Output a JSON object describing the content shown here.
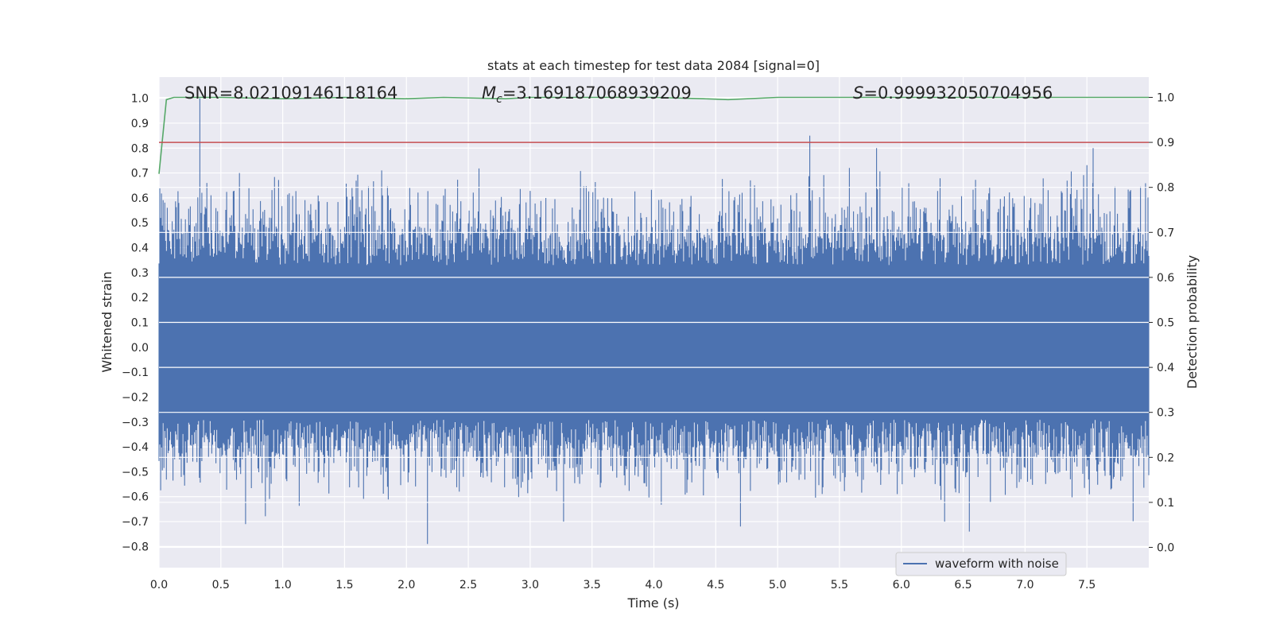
{
  "chart_data": {
    "type": "line",
    "title": "stats at each timestep for test data 2084 [signal=0]",
    "xlabel": "Time (s)",
    "ylabel": "Whitened strain",
    "y2label": "Detection probability",
    "xlim": [
      0.0,
      8.0
    ],
    "ylim": [
      -0.885,
      1.085
    ],
    "y2lim": [
      -0.045,
      1.045
    ],
    "x_ticks": [
      "0.0",
      "0.5",
      "1.0",
      "1.5",
      "2.0",
      "2.5",
      "3.0",
      "3.5",
      "4.0",
      "4.5",
      "5.0",
      "5.5",
      "6.0",
      "6.5",
      "7.0",
      "7.5"
    ],
    "y_ticks": [
      "1.0",
      "0.9",
      "0.8",
      "0.7",
      "0.6",
      "0.5",
      "0.4",
      "0.3",
      "0.2",
      "0.1",
      "0.0",
      "−0.1",
      "−0.2",
      "−0.3",
      "−0.4",
      "−0.5",
      "−0.6",
      "−0.7",
      "−0.8"
    ],
    "y2_ticks": [
      "1.0",
      "0.9",
      "0.8",
      "0.7",
      "0.6",
      "0.5",
      "0.4",
      "0.3",
      "0.2",
      "0.1",
      "0.0"
    ],
    "grid": true,
    "legend_position": "lower-right",
    "annotations": {
      "snr": "SNR=8.02109146118164",
      "mc_symbol": "M",
      "mc_subscript": "c",
      "mc_value": "=3.169187068939209",
      "s_symbol": "S",
      "s_value": "=0.999932050704956"
    },
    "series": [
      {
        "name": "waveform with noise",
        "axis": "left",
        "color": "#4c72b0",
        "envelope_description": "dense noisy strain, typical band ±0.45, spikes to 1.0 and -0.79",
        "peaks": [
          {
            "x": 0.33,
            "y": 1.0
          },
          {
            "x": 5.26,
            "y": 0.85
          },
          {
            "x": 5.8,
            "y": 0.8
          },
          {
            "x": 7.55,
            "y": 0.8
          },
          {
            "x": 1.8,
            "y": 0.71
          },
          {
            "x": 0.65,
            "y": 0.7
          },
          {
            "x": 2.17,
            "y": -0.79
          },
          {
            "x": 6.55,
            "y": -0.74
          },
          {
            "x": 4.7,
            "y": -0.72
          },
          {
            "x": 0.7,
            "y": -0.71
          },
          {
            "x": 3.27,
            "y": -0.7
          },
          {
            "x": 6.35,
            "y": -0.7
          }
        ]
      },
      {
        "name": "",
        "axis": "right",
        "color": "#55a868",
        "x": [
          0.0,
          0.06,
          0.12,
          0.5,
          1.0,
          1.5,
          2.0,
          2.3,
          2.8,
          3.0,
          4.0,
          4.4,
          4.6,
          5.0,
          6.0,
          7.0,
          8.0
        ],
        "y": [
          0.83,
          0.995,
          1.0,
          1.0,
          0.997,
          1.0,
          0.997,
          1.0,
          0.997,
          1.0,
          1.0,
          0.997,
          0.995,
          1.0,
          1.0,
          1.0,
          1.0
        ]
      },
      {
        "name": "",
        "axis": "right",
        "color": "#c44e52",
        "type": "hline",
        "y": 0.9
      }
    ]
  }
}
